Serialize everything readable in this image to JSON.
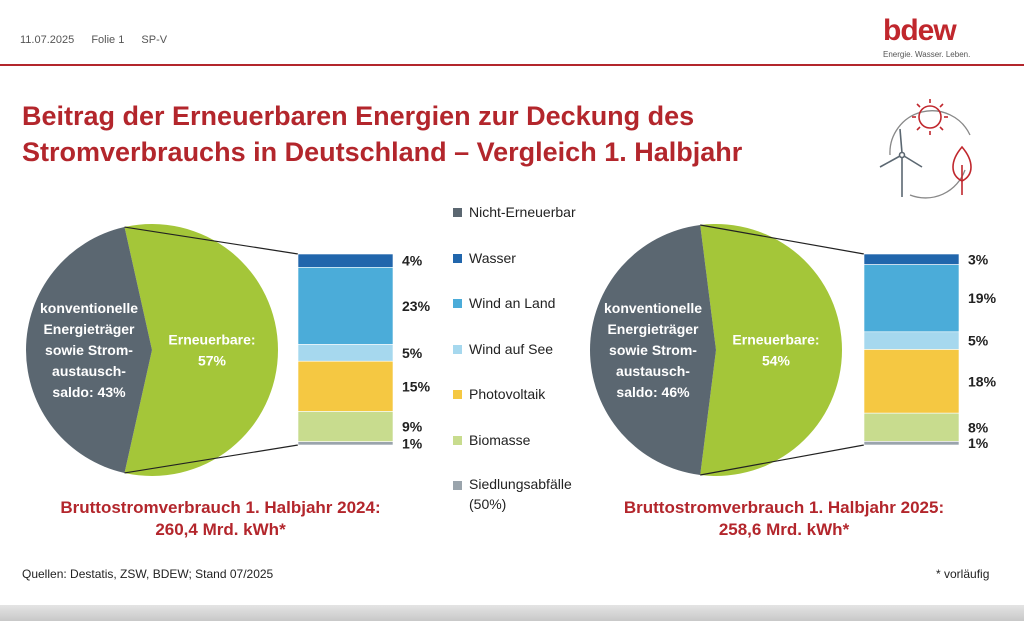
{
  "header": {
    "date": "11.07.2025",
    "slide": "Folie 1",
    "code": "SP-V",
    "logo_word": "bdew",
    "logo_tagline": "Energie. Wasser. Leben."
  },
  "title_lines": [
    "Beitrag der Erneuerbaren Energien zur Deckung des",
    "Stromverbrauchs in Deutschland – Vergleich 1. Halbjahr"
  ],
  "legend": [
    {
      "label": "Nicht-Erneuerbar",
      "color": "#5b6771"
    },
    {
      "label": "Wasser",
      "color": "#2166ac"
    },
    {
      "label": "Wind an Land",
      "color": "#4bacd9"
    },
    {
      "label": "Wind auf See",
      "color": "#a6d8ee"
    },
    {
      "label": "Photovoltaik",
      "color": "#f5c842"
    },
    {
      "label": "Biomasse",
      "color": "#c8dc8e"
    },
    {
      "label": "Siedlungsabfälle",
      "label2": "(50%)",
      "color": "#9aa4ac"
    }
  ],
  "chart_data": [
    {
      "type": "pie",
      "pie": {
        "slices": [
          {
            "name": "Nicht-Erneuerbar",
            "value": 43,
            "label_lines": [
              "konventionelle",
              "Energieträger",
              "sowie Strom-",
              "austausch-",
              "saldo: 43%"
            ],
            "color": "#5b6771"
          },
          {
            "name": "Erneuerbare",
            "value": 57,
            "label_lines": [
              "Erneuerbare:",
              "57%"
            ],
            "color": "#a4c639"
          }
        ]
      },
      "breakdown": {
        "type": "stacked_bar",
        "segments": [
          {
            "name": "Wasser",
            "value": 4,
            "label": "4%",
            "color": "#2166ac"
          },
          {
            "name": "Wind an Land",
            "value": 23,
            "label": "23%",
            "color": "#4bacd9"
          },
          {
            "name": "Wind auf See",
            "value": 5,
            "label": "5%",
            "color": "#a6d8ee"
          },
          {
            "name": "Photovoltaik",
            "value": 15,
            "label": "15%",
            "color": "#f5c842"
          },
          {
            "name": "Biomasse",
            "value": 9,
            "label": "9%",
            "color": "#c8dc8e"
          },
          {
            "name": "Siedlungsabfälle",
            "value": 1,
            "label": "1%",
            "color": "#9aa4ac"
          }
        ]
      },
      "subtitle_lines": [
        "Bruttostromverbrauch 1. Halbjahr 2024:",
        "260,4 Mrd. kWh*"
      ]
    },
    {
      "type": "pie",
      "pie": {
        "slices": [
          {
            "name": "Nicht-Erneuerbar",
            "value": 46,
            "label_lines": [
              "konventionelle",
              "Energieträger",
              "sowie Strom-",
              "austausch-",
              "saldo: 46%"
            ],
            "color": "#5b6771"
          },
          {
            "name": "Erneuerbare",
            "value": 54,
            "label_lines": [
              "Erneuerbare:",
              "54%"
            ],
            "color": "#a4c639"
          }
        ]
      },
      "breakdown": {
        "type": "stacked_bar",
        "segments": [
          {
            "name": "Wasser",
            "value": 3,
            "label": "3%",
            "color": "#2166ac"
          },
          {
            "name": "Wind an Land",
            "value": 19,
            "label": "19%",
            "color": "#4bacd9"
          },
          {
            "name": "Wind auf See",
            "value": 5,
            "label": "5%",
            "color": "#a6d8ee"
          },
          {
            "name": "Photovoltaik",
            "value": 18,
            "label": "18%",
            "color": "#f5c842"
          },
          {
            "name": "Biomasse",
            "value": 8,
            "label": "8%",
            "color": "#c8dc8e"
          },
          {
            "name": "Siedlungsabfälle",
            "value": 1,
            "label": "1%",
            "color": "#9aa4ac"
          }
        ]
      },
      "subtitle_lines": [
        "Bruttostromverbrauch 1. Halbjahr 2025:",
        "258,6 Mrd. kWh*"
      ]
    }
  ],
  "footer": {
    "source": "Quellen: Destatis, ZSW, BDEW; Stand 07/2025",
    "footnote": "* vorläufig"
  }
}
